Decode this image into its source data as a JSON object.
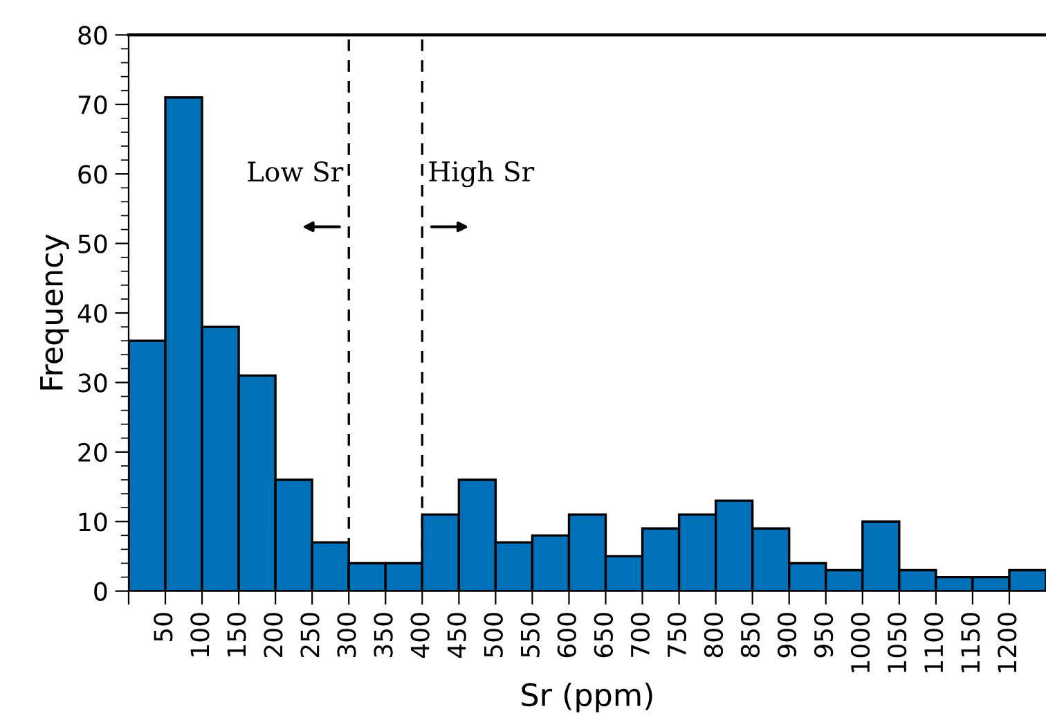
{
  "chart_data": {
    "type": "histogram",
    "xlabel": "Sr (ppm)",
    "ylabel": "Frequency",
    "bins": [
      0,
      50,
      100,
      150,
      200,
      250,
      300,
      350,
      400,
      450,
      500,
      550,
      600,
      650,
      700,
      750,
      800,
      850,
      900,
      950,
      1000,
      1050,
      1100,
      1150,
      1200,
      1250
    ],
    "values": [
      36,
      71,
      38,
      31,
      16,
      7,
      4,
      4,
      11,
      16,
      7,
      8,
      11,
      5,
      9,
      11,
      13,
      9,
      4,
      3,
      10,
      3,
      2,
      2,
      3
    ],
    "color": "#0070b8",
    "xlim": [
      0,
      1250
    ],
    "xticks": [
      {
        "value": 0,
        "label": null
      },
      50,
      100,
      150,
      200,
      250,
      300,
      350,
      400,
      450,
      500,
      550,
      600,
      650,
      700,
      750,
      800,
      850,
      900,
      950,
      1000,
      1050,
      1100,
      1150,
      1200
    ],
    "ylim": [
      0,
      80
    ],
    "yticks": [
      0,
      10,
      20,
      30,
      40,
      50,
      60,
      70,
      80
    ],
    "ref_lines": [
      {
        "axis": "x",
        "value": 300,
        "line_style": "dashed",
        "color": "#000000"
      },
      {
        "axis": "x",
        "value": 400,
        "line_style": "dashed",
        "color": "#000000"
      }
    ],
    "annotations": [
      "Low Sr",
      "High Sr"
    ],
    "grid": false
  }
}
